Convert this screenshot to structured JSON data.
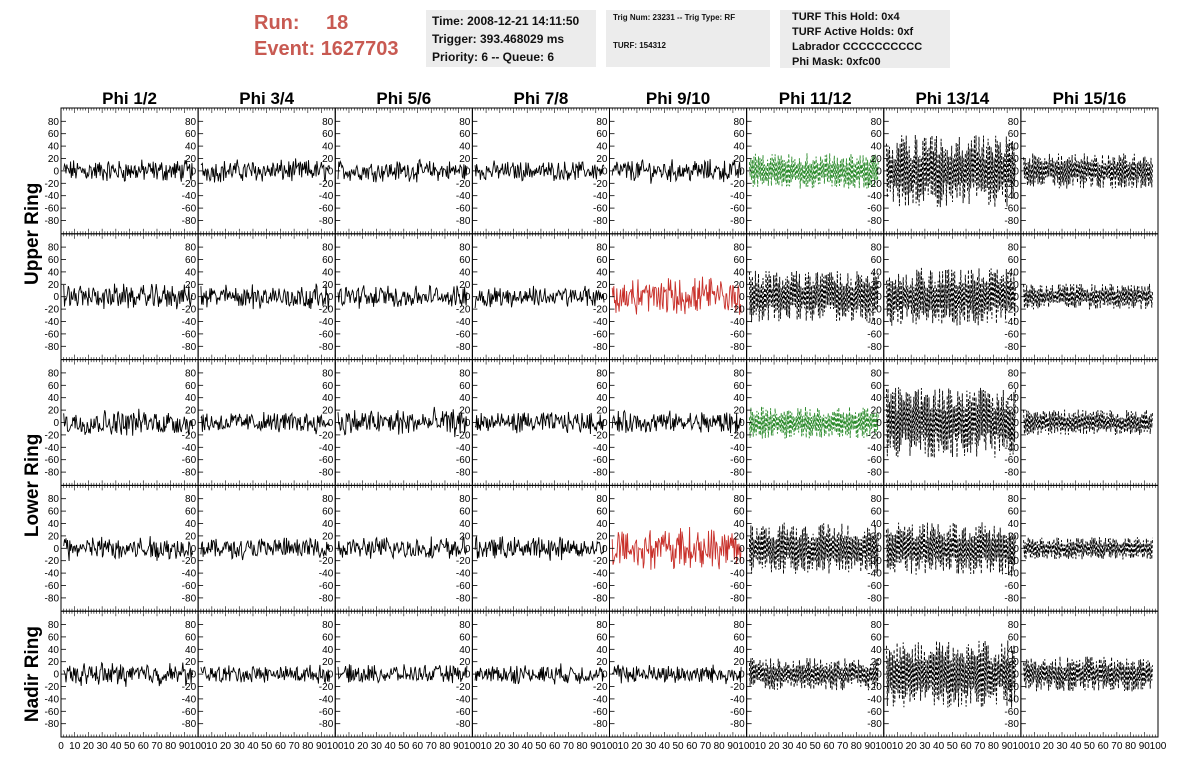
{
  "header": {
    "run_label": "Run:",
    "run_value": "18",
    "event_label": "Event:",
    "event_value": "1627703",
    "time_text": "Time: 2008-12-21 14:11:50",
    "trigger_text": "Trigger: 393.468029 ms",
    "priority_text": "Priority: 6 -- Queue: 6",
    "trig_num_text": "Trig Num: 23231 -- Trig Type: RF",
    "turf_text": "TURF: 154312",
    "turf_hold_text": "TURF This Hold: 0x4",
    "turf_active_text": "TURF Active Holds: 0xf",
    "labrador_text": "Labrador CCCCCCCCCC",
    "phi_mask_text": "Phi Mask: 0xfc00"
  },
  "chart_data": {
    "type": "line",
    "columns": [
      "Phi 1/2",
      "Phi 3/4",
      "Phi 5/6",
      "Phi 7/8",
      "Phi 9/10",
      "Phi 11/12",
      "Phi 13/14",
      "Phi 15/16"
    ],
    "rings": [
      {
        "label": "Upper Ring",
        "rows": [
          0,
          1
        ]
      },
      {
        "label": "Lower Ring",
        "rows": [
          2,
          3
        ]
      },
      {
        "label": "Nadir Ring",
        "rows": [
          4
        ]
      }
    ],
    "xlim": [
      0,
      100
    ],
    "ylim": [
      -95,
      95
    ],
    "y_ticks": [
      -80,
      -60,
      -40,
      -20,
      0,
      20,
      40,
      60,
      80
    ],
    "x_tick_labels": [
      "0",
      "10",
      "20",
      "30",
      "40",
      "50",
      "60",
      "70",
      "80",
      "90",
      "100"
    ],
    "line_colors": {
      "normal": "#000000",
      "l1_trigger": "#2a8a2a",
      "phi_trigger": "#c8302a"
    },
    "panels": [
      [
        {
          "style": "solid",
          "color": "normal",
          "amplitude": 14
        },
        {
          "style": "solid",
          "color": "normal",
          "amplitude": 14
        },
        {
          "style": "solid",
          "color": "normal",
          "amplitude": 13
        },
        {
          "style": "solid",
          "color": "normal",
          "amplitude": 12
        },
        {
          "style": "solid",
          "color": "normal",
          "amplitude": 14
        },
        {
          "style": "dashed",
          "color": "l1_trigger",
          "amplitude": 22
        },
        {
          "style": "dashed",
          "color": "normal",
          "amplitude": 45
        },
        {
          "style": "dashed",
          "color": "normal",
          "amplitude": 22
        }
      ],
      [
        {
          "style": "solid",
          "color": "normal",
          "amplitude": 15
        },
        {
          "style": "solid",
          "color": "normal",
          "amplitude": 15
        },
        {
          "style": "solid",
          "color": "normal",
          "amplitude": 14
        },
        {
          "style": "solid",
          "color": "normal",
          "amplitude": 13
        },
        {
          "style": "solid",
          "color": "phi_trigger",
          "amplitude": 24
        },
        {
          "style": "dashed",
          "color": "normal",
          "amplitude": 32
        },
        {
          "style": "dashed",
          "color": "normal",
          "amplitude": 36
        },
        {
          "style": "dashed",
          "color": "normal",
          "amplitude": 16
        }
      ],
      [
        {
          "style": "solid",
          "color": "normal",
          "amplitude": 16
        },
        {
          "style": "solid",
          "color": "normal",
          "amplitude": 13
        },
        {
          "style": "solid",
          "color": "normal",
          "amplitude": 17
        },
        {
          "style": "solid",
          "color": "normal",
          "amplitude": 13
        },
        {
          "style": "solid",
          "color": "normal",
          "amplitude": 14
        },
        {
          "style": "dashed",
          "color": "l1_trigger",
          "amplitude": 20
        },
        {
          "style": "dashed",
          "color": "normal",
          "amplitude": 44
        },
        {
          "style": "dashed",
          "color": "normal",
          "amplitude": 16
        }
      ],
      [
        {
          "style": "solid",
          "color": "normal",
          "amplitude": 15
        },
        {
          "style": "solid",
          "color": "normal",
          "amplitude": 13
        },
        {
          "style": "solid",
          "color": "normal",
          "amplitude": 14
        },
        {
          "style": "solid",
          "color": "normal",
          "amplitude": 14
        },
        {
          "style": "solid",
          "color": "phi_trigger",
          "amplitude": 26
        },
        {
          "style": "dashed",
          "color": "normal",
          "amplitude": 32
        },
        {
          "style": "dashed",
          "color": "normal",
          "amplitude": 33
        },
        {
          "style": "dashed",
          "color": "normal",
          "amplitude": 14
        }
      ],
      [
        {
          "style": "solid",
          "color": "normal",
          "amplitude": 14
        },
        {
          "style": "solid",
          "color": "normal",
          "amplitude": 11
        },
        {
          "style": "solid",
          "color": "normal",
          "amplitude": 11
        },
        {
          "style": "solid",
          "color": "normal",
          "amplitude": 12
        },
        {
          "style": "solid",
          "color": "normal",
          "amplitude": 12
        },
        {
          "style": "dashed",
          "color": "normal",
          "amplitude": 20
        },
        {
          "style": "dashed",
          "color": "normal",
          "amplitude": 42
        },
        {
          "style": "dashed",
          "color": "normal",
          "amplitude": 22
        }
      ]
    ]
  }
}
